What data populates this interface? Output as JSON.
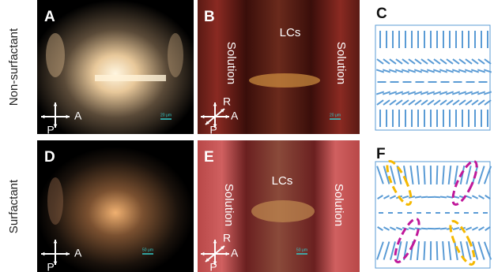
{
  "row_labels": [
    "Non-surfactant",
    "Surfactant"
  ],
  "panels": [
    {
      "letter": "A",
      "axes": [
        "A",
        "P"
      ],
      "scale_bar": "20 μm"
    },
    {
      "letter": "B",
      "axes": [
        "R",
        "A",
        "P"
      ],
      "regions": [
        "Solution",
        "LCs",
        "Solution"
      ],
      "scale_bar": "20 μm"
    },
    {
      "letter": "C"
    },
    {
      "letter": "D",
      "axes": [
        "A",
        "P"
      ],
      "scale_bar": "50 μm"
    },
    {
      "letter": "E",
      "axes": [
        "R",
        "A",
        "P"
      ],
      "regions": [
        "Solution",
        "LCs",
        "Solution"
      ],
      "scale_bar": "50 μm"
    },
    {
      "letter": "F"
    }
  ]
}
